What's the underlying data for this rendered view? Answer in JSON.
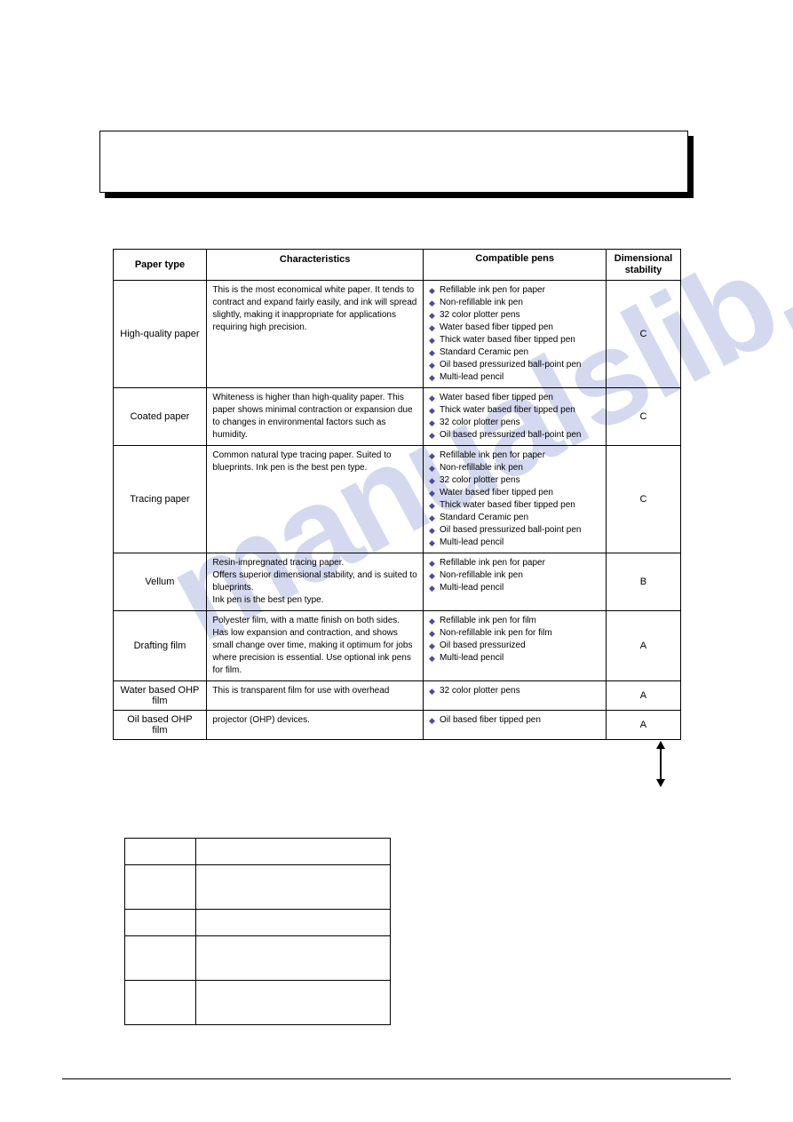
{
  "watermark_text": "manualslib.com",
  "watermark_color": "#d4d9f0",
  "paper_table": {
    "headers": [
      "Paper type",
      "Characteristics",
      "Compatible pens",
      "Dimensional stability"
    ],
    "rows": [
      {
        "type": "High-quality paper",
        "characteristics": "This is the most economical white paper. It tends to contract and expand fairly easily, and ink will spread slightly, making it inappropriate for applications requiring high precision.",
        "pens": [
          "Refillable ink pen for paper",
          "Non-refillable ink pen",
          "32 color plotter pens",
          "Water based fiber tipped pen",
          "Thick water based fiber tipped pen",
          "Standard Ceramic pen",
          "Oil based pressurized ball-point pen",
          "Multi-lead pencil"
        ],
        "stability": "C"
      },
      {
        "type": "Coated paper",
        "characteristics": "Whiteness is higher than high-quality paper. This paper shows minimal contraction or expansion due to changes in environmental factors such as humidity.",
        "pens": [
          "Water based fiber tipped pen",
          "Thick water based fiber tipped pen",
          "32 color plotter pens",
          "Oil based pressurized ball-point pen"
        ],
        "stability": "C"
      },
      {
        "type": "Tracing paper",
        "characteristics": "Common natural type tracing paper. Suited to blueprints. Ink pen is the best pen type.",
        "pens": [
          "Refillable ink pen for paper",
          "Non-refillable ink pen",
          "32 color plotter pens",
          "Water based fiber tipped pen",
          "Thick water based fiber tipped pen",
          "Standard Ceramic pen",
          "Oil based pressurized ball-point pen",
          "Multi-lead pencil"
        ],
        "stability": "C"
      },
      {
        "type": "Vellum",
        "characteristics": "Resin-impregnated tracing paper.\nOffers superior dimensional stability, and is suited to blueprints.\nInk pen is the best pen type.",
        "pens": [
          "Refillable ink pen for paper",
          "Non-refillable ink pen",
          "Multi-lead pencil"
        ],
        "stability": "B"
      },
      {
        "type": "Drafting film",
        "characteristics": "Polyester film, with a matte finish on both sides. Has low expansion and contraction, and shows small change over time, making it optimum for jobs where precision is essential. Use optional ink pens for film.",
        "pens": [
          "Refillable ink pen for film",
          "Non-refillable ink pen for film",
          "Oil based pressurized",
          "Multi-lead pencil"
        ],
        "stability": "A"
      },
      {
        "type": "Water based OHP film",
        "characteristics": "This is transparent film for use with overhead",
        "pens": [
          "32 color plotter pens"
        ],
        "stability": "A"
      },
      {
        "type": "Oil based OHP film",
        "characteristics": "projector (OHP) devices.",
        "pens": [
          "Oil based fiber tipped pen"
        ],
        "stability": "A"
      }
    ]
  },
  "bullet_color": "#4a4aa0",
  "blank_table_rows": 5
}
